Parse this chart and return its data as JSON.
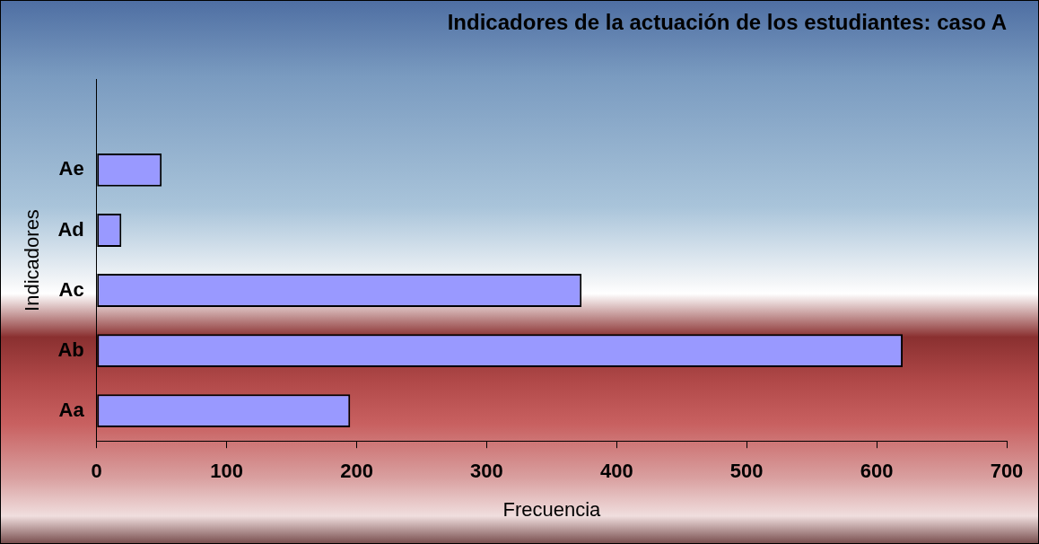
{
  "chart_data": {
    "type": "bar",
    "orientation": "horizontal",
    "title": "Indicadores de la actuación de los estudiantes: caso A",
    "xlabel": "Frecuencia",
    "ylabel": "Indicadores",
    "categories": [
      null,
      "Ae",
      "Ad",
      "Ac",
      "Ab",
      "Aa"
    ],
    "values": [
      null,
      50,
      19,
      373,
      620,
      195
    ],
    "color": "#9999ff",
    "xlim": [
      0,
      700
    ],
    "xticks": [
      0,
      100,
      200,
      300,
      400,
      500,
      600,
      700
    ],
    "grid": false,
    "legend": false
  }
}
